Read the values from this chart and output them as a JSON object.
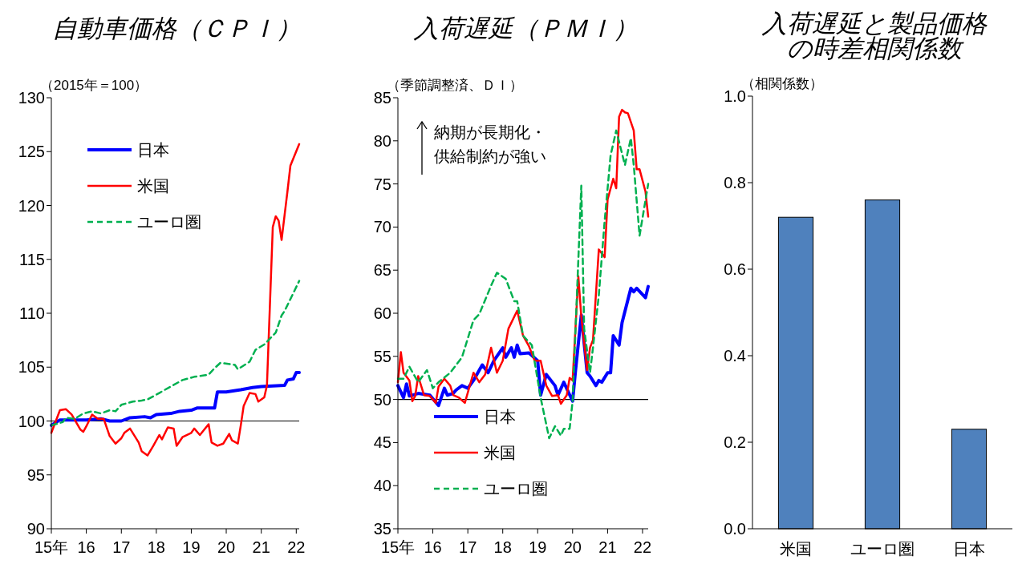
{
  "chart_data": [
    {
      "type": "line",
      "title": "自動車価格（ＣＰＩ）",
      "ylabel": "（2015年＝100）",
      "xlim": [
        "2015-01",
        "2022-02"
      ],
      "xticks": [
        {
          "value": "2015-01",
          "label": "15年"
        },
        {
          "value": "2016-01",
          "label": "16"
        },
        {
          "value": "2017-01",
          "label": "17"
        },
        {
          "value": "2018-01",
          "label": "18"
        },
        {
          "value": "2019-01",
          "label": "19"
        },
        {
          "value": "2020-01",
          "label": "20"
        },
        {
          "value": "2021-01",
          "label": "21"
        },
        {
          "value": "2022-01",
          "label": "22"
        }
      ],
      "ylim": [
        90,
        130
      ],
      "yticks": [
        90,
        95,
        100,
        105,
        110,
        115,
        120,
        125,
        130
      ],
      "legend": "top left",
      "ref_lines": [
        {
          "axis": "y",
          "value": 100,
          "color": "#000000"
        }
      ],
      "series": [
        {
          "name": "日本",
          "color": "#0000ff",
          "line_style": "solid",
          "x": [
            "2015-01",
            "2015-04",
            "2016-01",
            "2016-06",
            "2016-09",
            "2017-01",
            "2017-04",
            "2017-09",
            "2017-11",
            "2018-01",
            "2018-06",
            "2018-09",
            "2019-01",
            "2019-03",
            "2019-09",
            "2019-10",
            "2020-01",
            "2020-06",
            "2020-10",
            "2021-01",
            "2021-09",
            "2021-10",
            "2021-12",
            "2022-01",
            "2022-02"
          ],
          "values": [
            99.6,
            100.1,
            100.1,
            100.2,
            100.0,
            100.0,
            100.3,
            100.4,
            100.3,
            100.6,
            100.7,
            100.9,
            101.0,
            101.2,
            101.2,
            102.7,
            102.7,
            102.9,
            103.1,
            103.2,
            103.3,
            103.8,
            103.9,
            104.5,
            104.5
          ]
        },
        {
          "name": "米国",
          "color": "#ff0000",
          "line_style": "solid",
          "x": [
            "2015-01",
            "2015-04",
            "2015-06",
            "2015-08",
            "2015-11",
            "2015-12",
            "2016-01",
            "2016-03",
            "2016-05",
            "2016-07",
            "2016-09",
            "2016-11",
            "2017-01",
            "2017-02",
            "2017-04",
            "2017-07",
            "2017-08",
            "2017-10",
            "2017-12",
            "2018-02",
            "2018-03",
            "2018-05",
            "2018-07",
            "2018-08",
            "2018-10",
            "2019-01",
            "2019-02",
            "2019-04",
            "2019-07",
            "2019-08",
            "2019-10",
            "2019-12",
            "2020-02",
            "2020-03",
            "2020-05",
            "2020-06",
            "2020-07",
            "2020-09",
            "2020-11",
            "2020-12",
            "2021-02",
            "2021-03",
            "2021-05",
            "2021-06",
            "2021-07",
            "2021-08",
            "2021-09",
            "2021-10",
            "2021-11",
            "2022-02"
          ],
          "values": [
            98.9,
            101.0,
            101.1,
            100.6,
            99.2,
            99.0,
            99.5,
            100.6,
            100.2,
            100.2,
            98.6,
            97.9,
            98.4,
            98.9,
            99.3,
            98.0,
            97.2,
            96.8,
            97.7,
            98.7,
            98.3,
            99.4,
            99.3,
            97.7,
            98.5,
            98.9,
            99.3,
            98.7,
            99.7,
            98.0,
            97.7,
            97.9,
            98.8,
            98.2,
            97.9,
            99.6,
            101.4,
            102.6,
            102.5,
            101.8,
            102.2,
            103.3,
            118.0,
            119.0,
            118.6,
            116.8,
            119.1,
            121.3,
            123.7,
            125.7
          ]
        },
        {
          "name": "ユーロ圏",
          "color": "#00b050",
          "line_style": "dashed",
          "x": [
            "2015-01",
            "2015-05",
            "2015-06",
            "2015-09",
            "2015-12",
            "2016-03",
            "2016-06",
            "2016-09",
            "2016-11",
            "2017-01",
            "2017-05",
            "2017-08",
            "2017-10",
            "2018-02",
            "2018-06",
            "2018-10",
            "2019-02",
            "2019-07",
            "2019-09",
            "2019-11",
            "2020-04",
            "2020-05",
            "2020-09",
            "2020-11",
            "2021-02",
            "2021-06",
            "2021-08",
            "2021-09",
            "2022-02"
          ],
          "values": [
            99.6,
            99.9,
            100.3,
            100.2,
            100.7,
            100.9,
            100.7,
            101.0,
            100.9,
            101.5,
            101.8,
            101.9,
            102.0,
            102.6,
            103.2,
            103.8,
            104.1,
            104.3,
            104.9,
            105.4,
            105.2,
            104.8,
            105.5,
            106.6,
            107.1,
            108.2,
            109.8,
            110.2,
            113.0
          ]
        }
      ]
    },
    {
      "type": "line",
      "title": "入荷遅延（ＰＭＩ）",
      "ylabel": "（季節調整済、ＤＩ）",
      "xlim": [
        "2015-01",
        "2022-03"
      ],
      "xticks": [
        {
          "value": "2015-01",
          "label": "15年"
        },
        {
          "value": "2016-01",
          "label": "16"
        },
        {
          "value": "2017-01",
          "label": "17"
        },
        {
          "value": "2018-01",
          "label": "18"
        },
        {
          "value": "2019-01",
          "label": "19"
        },
        {
          "value": "2020-01",
          "label": "20"
        },
        {
          "value": "2021-01",
          "label": "21"
        },
        {
          "value": "2022-01",
          "label": "22"
        }
      ],
      "ylim": [
        35,
        85
      ],
      "yticks": [
        35,
        40,
        45,
        50,
        55,
        60,
        65,
        70,
        75,
        80,
        85
      ],
      "legend": "bottom left",
      "ref_lines": [
        {
          "axis": "y",
          "value": 50,
          "color": "#000000"
        }
      ],
      "annotations": [
        "納期が長期化・供給制約が強い"
      ],
      "series": [
        {
          "name": "日本",
          "color": "#0000ff",
          "line_style": "solid",
          "x": [
            "2015-01",
            "2015-03",
            "2015-04",
            "2015-05",
            "2015-08",
            "2015-12",
            "2016-03",
            "2016-05",
            "2016-06",
            "2016-08",
            "2016-09",
            "2016-11",
            "2017-01",
            "2017-03",
            "2017-05",
            "2017-06",
            "2017-08",
            "2017-10",
            "2018-01",
            "2018-02",
            "2018-04",
            "2018-05",
            "2018-06",
            "2018-07",
            "2018-10",
            "2019-01",
            "2019-02",
            "2019-04",
            "2019-07",
            "2019-08",
            "2019-10",
            "2020-01",
            "2020-02",
            "2020-04",
            "2020-06",
            "2020-07",
            "2020-09",
            "2020-10",
            "2020-11",
            "2021-01",
            "2021-02",
            "2021-03",
            "2021-05",
            "2021-06",
            "2021-09",
            "2021-10",
            "2021-11",
            "2022-02",
            "2022-03"
          ],
          "values": [
            51.6,
            50.2,
            51.8,
            50.4,
            50.7,
            50.5,
            49.3,
            51.3,
            50.5,
            50.7,
            51.1,
            51.6,
            51.3,
            52.2,
            53.4,
            54.0,
            53.1,
            54.5,
            56.0,
            54.9,
            56.0,
            54.9,
            56.3,
            55.3,
            55.4,
            54.5,
            50.5,
            52.9,
            51.6,
            50.5,
            52.0,
            49.8,
            53.4,
            59.8,
            53.1,
            52.7,
            51.6,
            52.2,
            52.0,
            53.1,
            53.1,
            57.4,
            56.3,
            58.9,
            62.9,
            62.5,
            62.9,
            61.8,
            63.1
          ]
        },
        {
          "name": "米国",
          "color": "#ff0000",
          "line_style": "solid",
          "x": [
            "2015-01",
            "2015-02",
            "2015-03",
            "2015-05",
            "2015-06",
            "2015-07",
            "2015-08",
            "2015-10",
            "2015-12",
            "2016-02",
            "2016-03",
            "2016-05",
            "2016-07",
            "2016-08",
            "2016-10",
            "2016-12",
            "2017-03",
            "2017-05",
            "2017-07",
            "2017-09",
            "2017-11",
            "2018-01",
            "2018-03",
            "2018-06",
            "2018-08",
            "2018-10",
            "2018-12",
            "2019-02",
            "2019-04",
            "2019-06",
            "2019-08",
            "2019-09",
            "2019-11",
            "2019-12",
            "2020-01",
            "2020-03",
            "2020-04",
            "2020-06",
            "2020-07",
            "2020-08",
            "2020-10",
            "2020-12",
            "2021-01",
            "2021-03",
            "2021-04",
            "2021-05",
            "2021-06",
            "2021-07",
            "2021-08",
            "2021-10",
            "2021-11",
            "2021-12",
            "2022-02",
            "2022-03"
          ],
          "values": [
            52.0,
            55.5,
            53.1,
            52.2,
            49.8,
            50.4,
            52.7,
            50.5,
            50.4,
            49.6,
            51.5,
            52.4,
            51.6,
            50.5,
            50.2,
            49.6,
            53.1,
            52.0,
            52.9,
            56.0,
            53.1,
            54.5,
            58.2,
            60.3,
            57.4,
            56.2,
            54.5,
            54.5,
            51.6,
            50.4,
            50.5,
            49.5,
            50.5,
            52.5,
            52.2,
            64.3,
            59.6,
            53.4,
            56.0,
            56.9,
            67.4,
            66.5,
            73.2,
            75.6,
            74.5,
            82.8,
            83.6,
            83.3,
            83.2,
            81.2,
            76.7,
            76.7,
            74.1,
            71.2
          ]
        },
        {
          "name": "ユーロ圏",
          "color": "#00b050",
          "line_style": "dashed",
          "x": [
            "2015-01",
            "2015-03",
            "2015-05",
            "2015-08",
            "2015-11",
            "2016-01",
            "2016-03",
            "2016-07",
            "2016-11",
            "2017-03",
            "2017-05",
            "2017-09",
            "2017-11",
            "2018-02",
            "2018-05",
            "2018-06",
            "2018-08",
            "2018-11",
            "2019-02",
            "2019-05",
            "2019-07",
            "2019-09",
            "2019-10",
            "2019-12",
            "2020-01",
            "2020-02",
            "2020-04",
            "2020-05",
            "2020-07",
            "2020-08",
            "2020-10",
            "2020-12",
            "2021-02",
            "2021-04",
            "2021-07",
            "2021-09",
            "2021-10",
            "2021-12",
            "2022-03"
          ],
          "values": [
            52.4,
            52.4,
            53.8,
            52.0,
            53.4,
            51.3,
            52.0,
            53.1,
            54.9,
            59.2,
            59.9,
            63.2,
            64.7,
            64.0,
            61.4,
            61.4,
            57.4,
            56.3,
            50.2,
            45.5,
            46.9,
            45.8,
            46.6,
            46.6,
            49.8,
            58.2,
            74.8,
            58.2,
            53.1,
            56.0,
            62.1,
            70.7,
            78.3,
            81.2,
            77.2,
            80.3,
            77.2,
            69.0,
            75.0
          ]
        }
      ]
    },
    {
      "type": "bar",
      "title": "入荷遅延と製品価格の時差相関係数",
      "ylabel": "（相関係数）",
      "categories": [
        "米国",
        "ユーロ圏",
        "日本"
      ],
      "values": [
        0.72,
        0.76,
        0.23
      ],
      "color": "#4f81bd",
      "ylim": [
        0,
        1
      ],
      "yticks": [
        {
          "value": 0,
          "label": "0.0"
        },
        0.2,
        0.4,
        0.6,
        0.8,
        {
          "value": 1,
          "label": "1.0"
        }
      ]
    }
  ]
}
